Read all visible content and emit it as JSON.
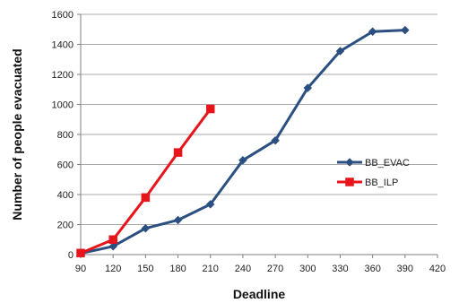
{
  "chart_data": {
    "type": "line",
    "xlabel": "Deadline",
    "ylabel": "Number of people evacuated",
    "xlim": [
      90,
      420
    ],
    "ylim": [
      0,
      1600
    ],
    "xticks": [
      90,
      120,
      150,
      180,
      210,
      240,
      270,
      300,
      330,
      360,
      390,
      420
    ],
    "yticks": [
      0,
      200,
      400,
      600,
      800,
      1000,
      1200,
      1400,
      1600
    ],
    "grid": "horizontal",
    "legend_position": "right",
    "series": [
      {
        "name": "BB_EVAC",
        "color": "#2b4f81",
        "marker": "diamond",
        "x": [
          90,
          120,
          150,
          180,
          210,
          240,
          270,
          300,
          330,
          360,
          390
        ],
        "y": [
          8,
          55,
          175,
          230,
          335,
          628,
          760,
          1110,
          1355,
          1485,
          1495
        ]
      },
      {
        "name": "BB_ILP",
        "color": "#e8141b",
        "marker": "square",
        "x": [
          90,
          120,
          150,
          180,
          210
        ],
        "y": [
          10,
          100,
          380,
          680,
          970
        ]
      }
    ]
  }
}
